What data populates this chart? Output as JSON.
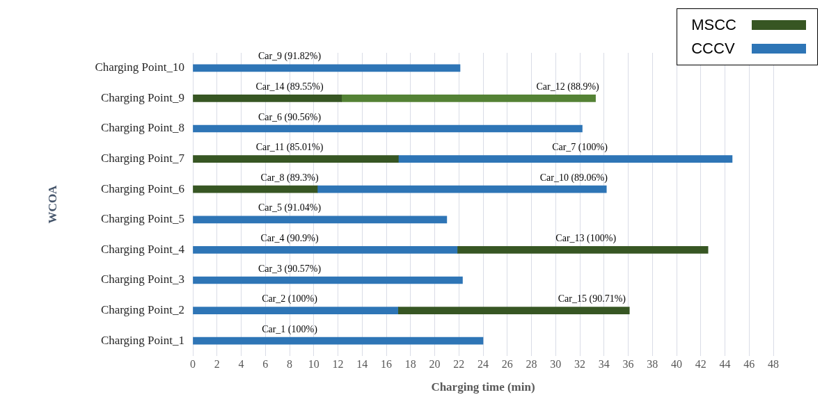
{
  "chart_data": {
    "type": "bar",
    "orientation": "horizontal",
    "xlabel": "Charging time (min)",
    "ylabel": "WCOA",
    "categories": [
      "Charging Point_10",
      "Charging Point_9",
      "Charging Point_8",
      "Charging Point_7",
      "Charging Point_6",
      "Charging Point_5",
      "Charging Point_4",
      "Charging Point_3",
      "Charging Point_2",
      "Charging Point_1"
    ],
    "series": [
      {
        "name": "MSCC",
        "color": "#375623",
        "base": [
          null,
          0,
          null,
          0,
          0,
          null,
          21.9,
          null,
          17.0,
          null
        ],
        "values": [
          null,
          12.3,
          null,
          17.0,
          10.3,
          null,
          20.7,
          null,
          19.1,
          null
        ]
      },
      {
        "name": "CCCV",
        "color": "#2e75b6",
        "base": [
          0,
          null,
          0,
          17.0,
          10.3,
          0,
          0,
          0,
          0,
          0
        ],
        "values": [
          22.1,
          null,
          32.2,
          27.6,
          23.9,
          21.0,
          21.9,
          22.3,
          17.0,
          24.0
        ]
      },
      {
        "color": "#548235",
        "base": [
          null,
          12.3,
          null,
          null,
          null,
          null,
          null,
          null,
          null,
          null
        ],
        "values": [
          null,
          21.0,
          null,
          null,
          null,
          null,
          null,
          null,
          null,
          null
        ]
      }
    ],
    "annotations": [
      {
        "text": "Car_9 (91.82%)",
        "x": 8,
        "y": "Charging Point_10"
      },
      {
        "text": "Car_14 (89.55%)",
        "x": 8,
        "y": "Charging Point_9"
      },
      {
        "text": "Car_12 (88.9%)",
        "x": 31,
        "y": "Charging Point_9"
      },
      {
        "text": "Car_6 (90.56%)",
        "x": 8,
        "y": "Charging Point_8"
      },
      {
        "text": "Car_11 (85.01%)",
        "x": 8,
        "y": "Charging Point_7"
      },
      {
        "text": "Car_7 (100%)",
        "x": 32,
        "y": "Charging Point_7"
      },
      {
        "text": "Car_8 (89.3%)",
        "x": 8,
        "y": "Charging Point_6"
      },
      {
        "text": "Car_10 (89.06%)",
        "x": 31.5,
        "y": "Charging Point_6"
      },
      {
        "text": "Car_5 (91.04%)",
        "x": 8,
        "y": "Charging Point_5"
      },
      {
        "text": "Car_4 (90.9%)",
        "x": 8,
        "y": "Charging Point_4"
      },
      {
        "text": "Car_13 (100%)",
        "x": 32.5,
        "y": "Charging Point_4"
      },
      {
        "text": "Car_3 (90.57%)",
        "x": 8,
        "y": "Charging Point_3"
      },
      {
        "text": "Car_2 (100%)",
        "x": 8,
        "y": "Charging Point_2"
      },
      {
        "text": "Car_15 (90.71%)",
        "x": 33,
        "y": "Charging Point_2"
      },
      {
        "text": "Car_1 (100%)",
        "x": 8,
        "y": "Charging Point_1"
      }
    ],
    "xlim": [
      0,
      48
    ],
    "xticks": [
      0,
      2,
      4,
      6,
      8,
      10,
      12,
      14,
      16,
      18,
      20,
      22,
      24,
      26,
      28,
      30,
      32,
      34,
      36,
      38,
      40,
      42,
      44,
      46,
      48
    ],
    "grid": "x",
    "legend": "top right"
  }
}
